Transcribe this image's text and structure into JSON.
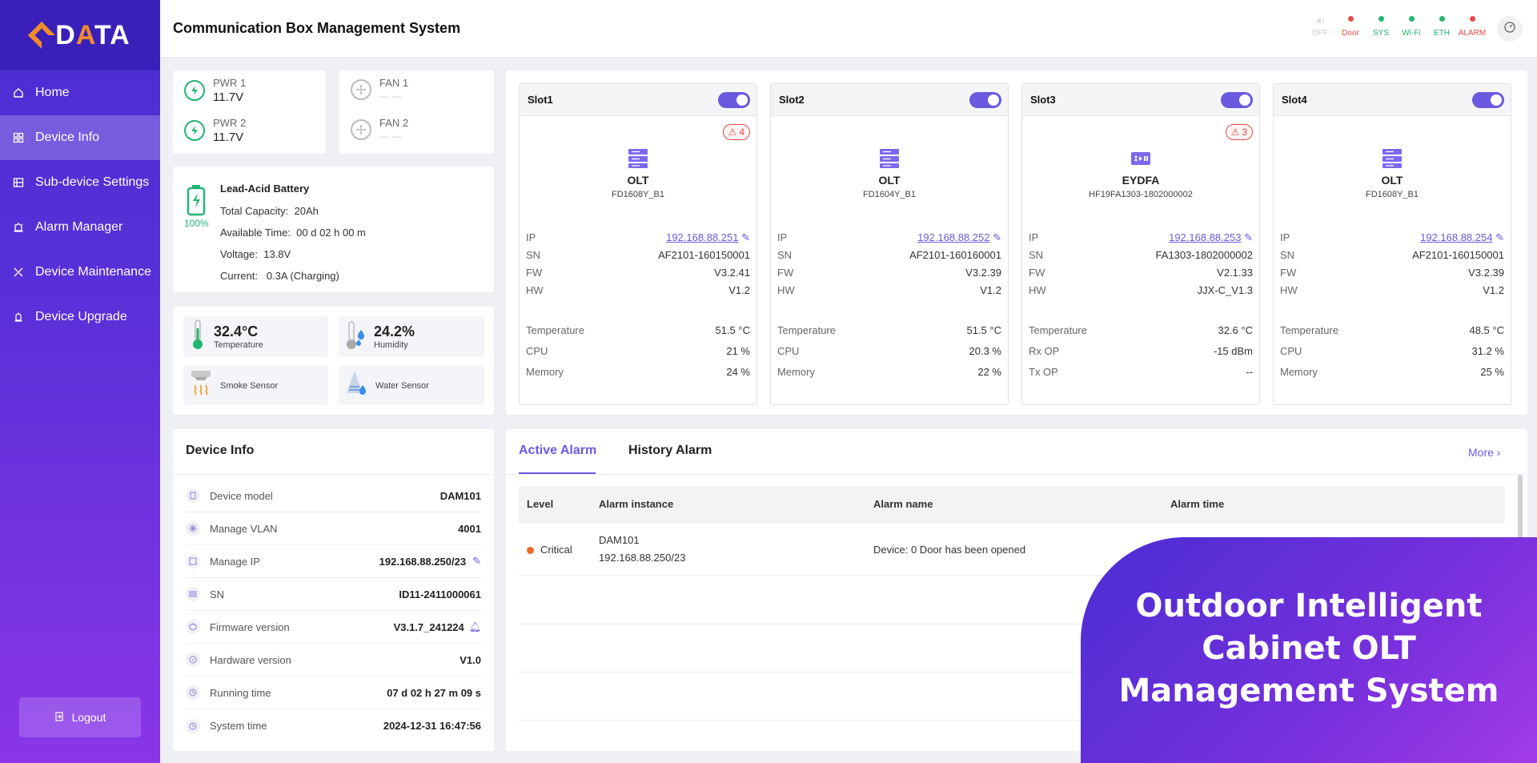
{
  "brand": {
    "logo_text": "DATA"
  },
  "sidebar": {
    "items": [
      {
        "label": "Home",
        "icon": "home-icon"
      },
      {
        "label": "Device Info",
        "icon": "grid-icon"
      },
      {
        "label": "Sub-device Settings",
        "icon": "settings-list-icon"
      },
      {
        "label": "Alarm Manager",
        "icon": "alarm-icon"
      },
      {
        "label": "Device Maintenance",
        "icon": "tools-icon"
      },
      {
        "label": "Device Upgrade",
        "icon": "upgrade-icon"
      }
    ],
    "active_index": 1,
    "logout_label": "Logout"
  },
  "header": {
    "title": "Communication Box Management System",
    "status": [
      {
        "label": "OFF",
        "color": "#d8d8d8"
      },
      {
        "label": "Door",
        "color": "#e84a4a"
      },
      {
        "label": "SYS",
        "color": "#22b573"
      },
      {
        "label": "Wi-Fi",
        "color": "#22b573"
      },
      {
        "label": "ETH",
        "color": "#22b573"
      },
      {
        "label": "ALARM",
        "color": "#e84a4a"
      }
    ]
  },
  "power": {
    "pwr1": {
      "label": "PWR 1",
      "value": "11.7V"
    },
    "pwr2": {
      "label": "PWR 2",
      "value": "11.7V"
    },
    "fan1": {
      "label": "FAN 1",
      "value": "— —"
    },
    "fan2": {
      "label": "FAN 2",
      "value": "— —"
    }
  },
  "battery": {
    "title": "Lead-Acid Battery",
    "percent": "100%",
    "capacity_label": "Total Capacity:",
    "capacity": "20Ah",
    "available_label": "Available Time:",
    "available": "00 d 02 h 00 m",
    "voltage_label": "Voltage:",
    "voltage": "13.8V",
    "current_label": "Current:",
    "current": "0.3A (Charging)"
  },
  "sensors": {
    "temperature": {
      "value": "32.4°C",
      "label": "Temperature"
    },
    "humidity": {
      "value": "24.2%",
      "label": "Humidity"
    },
    "smoke": {
      "label": "Smoke Sensor"
    },
    "water": {
      "label": "Water Sensor"
    }
  },
  "slots": [
    {
      "name": "Slot1",
      "alarms": "4",
      "type": "OLT",
      "model": "FD1608Y_B1",
      "rows": [
        [
          "IP",
          "192.168.88.251"
        ],
        [
          "SN",
          "AF2101-160150001"
        ],
        [
          "FW",
          "V3.2.41"
        ],
        [
          "HW",
          "V1.2"
        ]
      ],
      "stats": [
        [
          "Temperature",
          "51.5 °C"
        ],
        [
          "CPU",
          "21 %"
        ],
        [
          "Memory",
          "24 %"
        ]
      ]
    },
    {
      "name": "Slot2",
      "alarms": "",
      "type": "OLT",
      "model": "FD1604Y_B1",
      "rows": [
        [
          "IP",
          "192.168.88.252"
        ],
        [
          "SN",
          "AF2101-160160001"
        ],
        [
          "FW",
          "V3.2.39"
        ],
        [
          "HW",
          "V1.2"
        ]
      ],
      "stats": [
        [
          "Temperature",
          "51.5 °C"
        ],
        [
          "CPU",
          "20.3 %"
        ],
        [
          "Memory",
          "22 %"
        ]
      ]
    },
    {
      "name": "Slot3",
      "alarms": "3",
      "type": "EYDFA",
      "model": "HF19FA1303-1802000002",
      "rows": [
        [
          "IP",
          "192.168.88.253"
        ],
        [
          "SN",
          "FA1303-1802000002"
        ],
        [
          "FW",
          "V2.1.33"
        ],
        [
          "HW",
          "JJX-C_V1.3"
        ]
      ],
      "stats": [
        [
          "Temperature",
          "32.6 °C"
        ],
        [
          "Rx OP",
          "-15 dBm"
        ],
        [
          "Tx OP",
          "--"
        ]
      ]
    },
    {
      "name": "Slot4",
      "alarms": "",
      "type": "OLT",
      "model": "FD1608Y_B1",
      "rows": [
        [
          "IP",
          "192.168.88.254"
        ],
        [
          "SN",
          "AF2101-160150001"
        ],
        [
          "FW",
          "V3.2.39"
        ],
        [
          "HW",
          "V1.2"
        ]
      ],
      "stats": [
        [
          "Temperature",
          "48.5 °C"
        ],
        [
          "CPU",
          "31.2 %"
        ],
        [
          "Memory",
          "25 %"
        ]
      ]
    }
  ],
  "device_info": {
    "title": "Device Info",
    "rows": [
      {
        "label": "Device model",
        "value": "DAM101"
      },
      {
        "label": "Manage VLAN",
        "value": "4001"
      },
      {
        "label": "Manage IP",
        "value": "192.168.88.250/23"
      },
      {
        "label": "SN",
        "value": "ID11-2411000061"
      },
      {
        "label": "Firmware version",
        "value": "V3.1.7_241224"
      },
      {
        "label": "Hardware version",
        "value": "V1.0"
      },
      {
        "label": "Running time",
        "value": "07 d 02 h 27 m 09 s"
      },
      {
        "label": "System time",
        "value": "2024-12-31 16:47:56"
      }
    ]
  },
  "alarms": {
    "tabs": [
      "Active Alarm",
      "History Alarm"
    ],
    "more_label": "More",
    "columns": [
      "Level",
      "Alarm instance",
      "Alarm name",
      "Alarm time"
    ],
    "rows": [
      {
        "level": "Critical",
        "instance_line1": "DAM101",
        "instance_line2": "192.168.88.250/23",
        "name": "Device: 0 Door has been opened"
      }
    ]
  },
  "banner": {
    "line1": "Outdoor Intelligent",
    "line2": "Cabinet OLT",
    "line3": "Management System"
  }
}
